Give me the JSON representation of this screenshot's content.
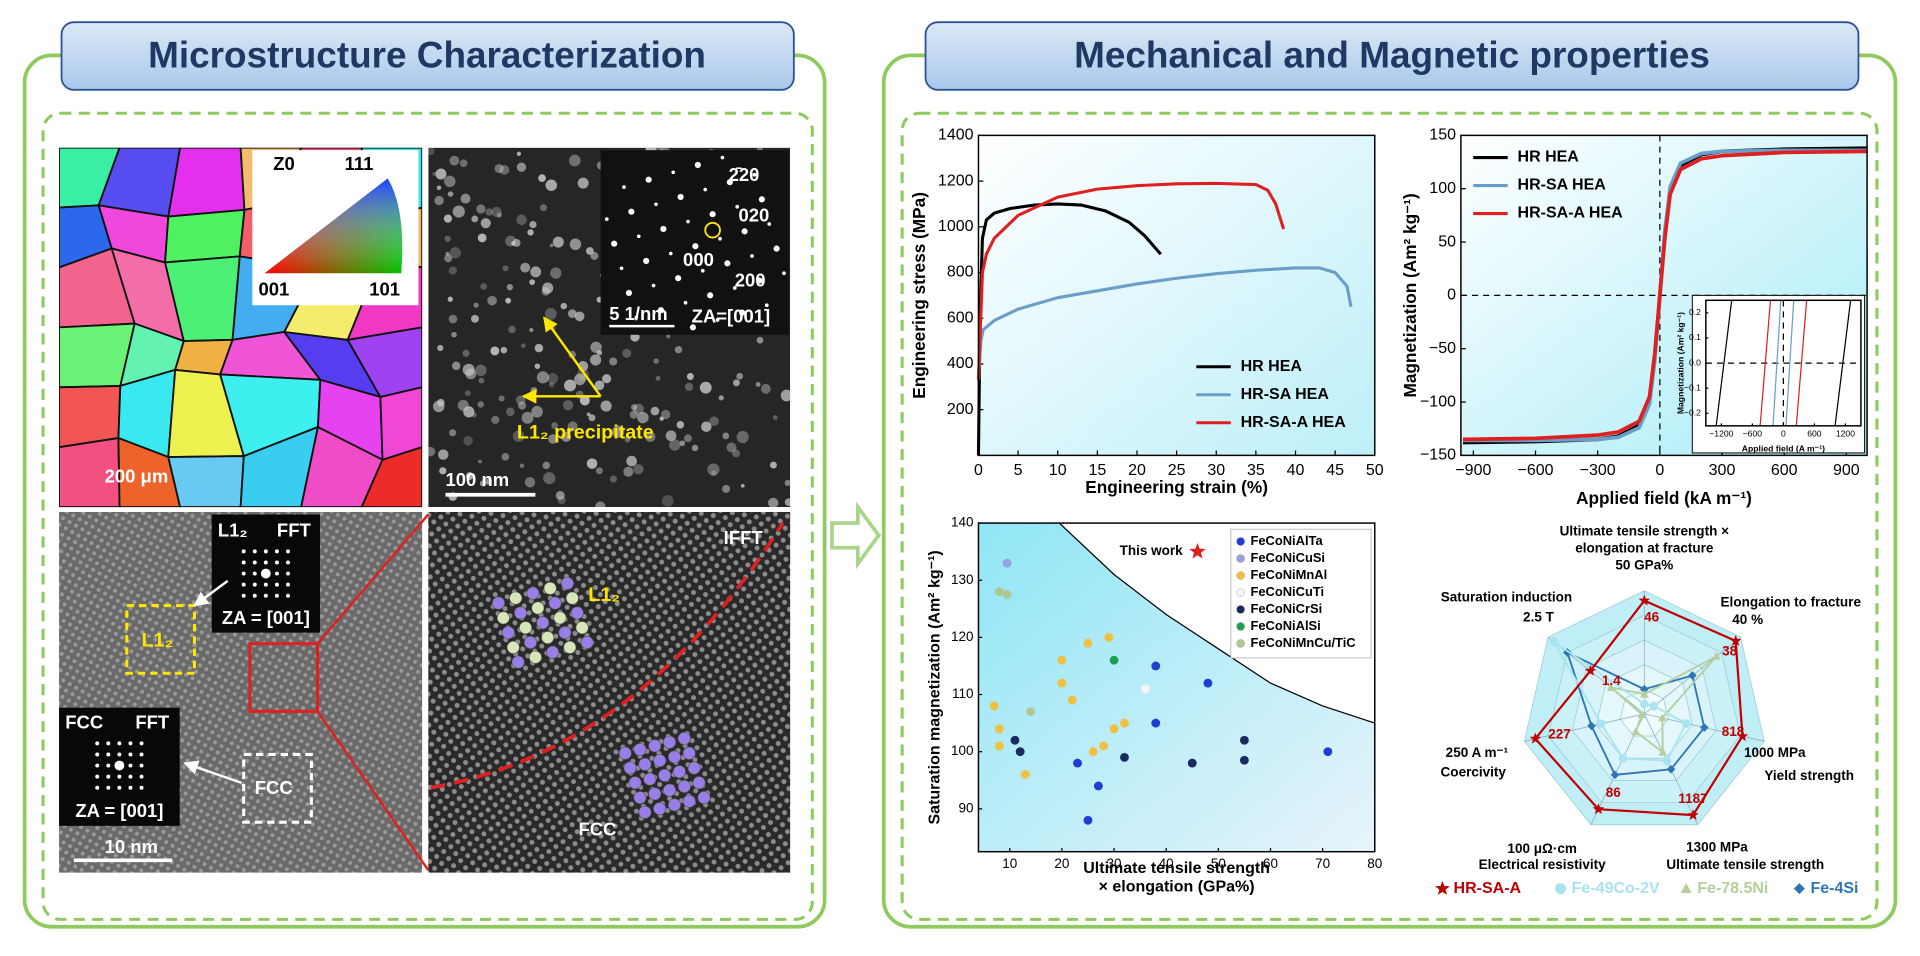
{
  "left_panel": {
    "title": "Microstructure Characterization",
    "ebsd": {
      "key": [
        "Z0",
        "111",
        "001",
        "101"
      ],
      "scale_bar": "200 μm"
    },
    "tem": {
      "diffraction": [
        "2̄20",
        "020",
        "000",
        "200"
      ],
      "scale_inset": "5 1/nm",
      "zone_axis": "ZA=[001]",
      "annotation": "L1₂ precipitate",
      "scale_bar": "100 nm"
    },
    "hrtem": {
      "box_l12": "L1₂",
      "fft_l12": {
        "phase": "L1₂",
        "label": "FFT",
        "zone_axis": "ZA = [001]"
      },
      "fft_fcc": {
        "phase": "FCC",
        "label": "FFT",
        "zone_axis": "ZA = [001]"
      },
      "box_fcc": "FCC",
      "scale_bar": "10 nm"
    },
    "ifft": {
      "label": "IFFT",
      "l12": "L1₂",
      "fcc": "FCC"
    }
  },
  "right_panel": {
    "title": "Mechanical and Magnetic properties"
  },
  "chart_data": [
    {
      "type": "line",
      "xlabel": "Engineering strain (%)",
      "ylabel": "Engineering stress (MPa)",
      "xlim": [
        0,
        50
      ],
      "xticks": [
        0,
        5,
        10,
        15,
        20,
        25,
        30,
        35,
        40,
        45,
        50
      ],
      "ylim": [
        0,
        1400
      ],
      "yticks": [
        200,
        400,
        600,
        800,
        1000,
        1200,
        1400
      ],
      "legend": "lower right",
      "series": [
        {
          "name": "HR HEA",
          "color": "#000000",
          "x": [
            0,
            0.2,
            0.5,
            1,
            2,
            4,
            7,
            10,
            13,
            16,
            19,
            21,
            23
          ],
          "values": [
            0,
            600,
            950,
            1030,
            1060,
            1080,
            1095,
            1100,
            1095,
            1070,
            1020,
            960,
            880
          ]
        },
        {
          "name": "HR-SA HEA",
          "color": "#6a9ec8",
          "x": [
            0,
            0.3,
            0.6,
            2,
            5,
            10,
            15,
            20,
            25,
            30,
            35,
            40,
            43,
            45,
            46.5,
            47
          ],
          "values": [
            330,
            500,
            550,
            590,
            640,
            690,
            720,
            750,
            775,
            795,
            810,
            820,
            820,
            800,
            740,
            650
          ]
        },
        {
          "name": "HR-SA-A HEA",
          "color": "#e02020",
          "x": [
            0,
            0.5,
            1,
            2,
            5,
            10,
            15,
            20,
            25,
            30,
            35,
            36.5,
            37.5,
            38.5
          ],
          "values": [
            330,
            800,
            880,
            950,
            1050,
            1130,
            1165,
            1180,
            1188,
            1190,
            1185,
            1160,
            1100,
            990
          ]
        }
      ]
    },
    {
      "type": "line",
      "xlabel": "Applied field (kA m⁻¹)",
      "ylabel": "Magnetization (Am² kg⁻¹)",
      "xlim": [
        -960,
        1000
      ],
      "xticks": [
        {
          "value": -900,
          "label": "−900"
        },
        {
          "value": -600,
          "label": "−600"
        },
        {
          "value": -300,
          "label": "−300"
        },
        0,
        300,
        600,
        900
      ],
      "ylim": [
        -150,
        150
      ],
      "yticks": [
        {
          "value": -150,
          "label": "−150"
        },
        {
          "value": -100,
          "label": "−100"
        },
        {
          "value": -50,
          "label": "−50"
        },
        0,
        50,
        100,
        150
      ],
      "zero_lines": true,
      "legend": "upper left",
      "series": [
        {
          "name": "HR HEA",
          "color": "#000000",
          "x": [
            -950,
            -600,
            -300,
            -200,
            -100,
            -50,
            -25,
            0,
            25,
            50,
            100,
            200,
            300,
            600,
            1000
          ],
          "values": [
            -138,
            -137,
            -135,
            -132,
            -122,
            -100,
            -60,
            0,
            60,
            100,
            122,
            132,
            135,
            137,
            138
          ]
        },
        {
          "name": "HR-SA HEA",
          "color": "#6a9ec8",
          "x": [
            -950,
            -600,
            -300,
            -200,
            -100,
            -50,
            -25,
            0,
            25,
            50,
            100,
            200,
            300,
            600,
            1000
          ],
          "values": [
            -136,
            -136,
            -135,
            -133,
            -124,
            -102,
            -62,
            0,
            62,
            102,
            124,
            133,
            135,
            136,
            136
          ]
        },
        {
          "name": "HR-SA-A HEA",
          "color": "#e02020",
          "x": [
            -950,
            -600,
            -300,
            -200,
            -100,
            -50,
            -25,
            0,
            25,
            50,
            100,
            200,
            300,
            600,
            1000
          ],
          "values": [
            -135,
            -134,
            -131,
            -128,
            -118,
            -95,
            -55,
            0,
            55,
            95,
            118,
            128,
            131,
            134,
            135
          ]
        }
      ]
    },
    {
      "type": "line",
      "xlabel": "Applied field (A m⁻¹)",
      "ylabel": "Magnetization (Am² kg⁻¹)",
      "xlim": [
        -1500,
        1500
      ],
      "xticks": [
        {
          "value": -1200,
          "label": "−1200"
        },
        {
          "value": -600,
          "label": "−600"
        },
        0,
        600,
        1200
      ],
      "ylim": [
        -0.25,
        0.25
      ],
      "yticks": [
        {
          "value": -0.2,
          "label": "−0.2"
        },
        {
          "value": -0.1,
          "label": "−0.1"
        },
        {
          "value": 0,
          "label": "0.0"
        },
        0.1,
        0.2
      ],
      "zero_lines": true,
      "series": [
        {
          "color": "#000000",
          "x": [
            -1300,
            -1000,
            null,
            1000,
            1300
          ],
          "values": [
            -0.25,
            0.25,
            null,
            -0.25,
            0.25
          ]
        },
        {
          "color": "#e02020",
          "x": [
            -450,
            -250,
            null,
            250,
            450
          ],
          "values": [
            -0.25,
            0.25,
            null,
            -0.25,
            0.25
          ]
        },
        {
          "color": "#6a9ec8",
          "x": [
            -200,
            -50,
            null,
            50,
            200
          ],
          "values": [
            -0.25,
            0.25,
            null,
            -0.25,
            0.25
          ]
        }
      ]
    },
    {
      "type": "scatter",
      "xlabel": [
        "Ultimate tensile strength",
        "× elongation (GPa%)"
      ],
      "ylabel": "Saturation magnetization (Am² kg⁻¹)",
      "xlim": [
        4,
        80
      ],
      "xticks": [
        10,
        20,
        30,
        40,
        50,
        60,
        70,
        80
      ],
      "ylim": [
        82.5,
        140
      ],
      "yticks": [
        90,
        100,
        110,
        120,
        130,
        140
      ],
      "legend": "upper right",
      "curve": {
        "x": [
          19.5,
          30,
          40,
          50,
          60,
          70,
          80
        ],
        "y": [
          140,
          131,
          124,
          118,
          112,
          108,
          105
        ]
      },
      "this_work": {
        "label": "This work",
        "x": 46,
        "y": 135,
        "color": "#e02020"
      },
      "series": [
        {
          "name": "FeCoNiAlTa",
          "color": "#1f3fd0",
          "x": [
            38,
            48,
            38,
            71,
            23,
            27,
            25
          ],
          "values": [
            115,
            112,
            105,
            100,
            98,
            94,
            88
          ]
        },
        {
          "name": "FeCoNiCuSi",
          "color": "#94a3e0",
          "x": [
            9.5
          ],
          "values": [
            133
          ]
        },
        {
          "name": "FeCoNiMnAl",
          "color": "#f0c040",
          "x": [
            7,
            8,
            8,
            20,
            20,
            22,
            25,
            29,
            30,
            32,
            28,
            26,
            13
          ],
          "values": [
            108,
            104,
            101,
            116,
            112,
            109,
            119,
            120,
            104,
            105,
            101,
            100,
            96
          ]
        },
        {
          "name": "FeCoNiCuTi",
          "color": "#f4f4f4",
          "x": [
            36
          ],
          "values": [
            111
          ]
        },
        {
          "name": "FeCoNiCrSi",
          "color": "#1a2a60",
          "x": [
            11,
            12,
            32,
            45,
            55,
            55
          ],
          "values": [
            102,
            100,
            99,
            98,
            98.5,
            102
          ]
        },
        {
          "name": "FeCoNiAlSi",
          "color": "#20a050",
          "x": [
            30
          ],
          "values": [
            116
          ]
        },
        {
          "name": "FeCoNiMnCu/TiC",
          "color": "#b0c890",
          "x": [
            8,
            9.5,
            14
          ],
          "values": [
            128,
            127.5,
            107
          ]
        }
      ]
    },
    {
      "type": "radar",
      "axes": [
        {
          "name": [
            "Ultimate tensile strength ×",
            "elongation at fracture"
          ],
          "max": 50,
          "max_label": "50 GPa%"
        },
        {
          "name": [
            "Elongation to fracture"
          ],
          "max": 40,
          "max_label": "40 %"
        },
        {
          "name": [
            "Yield strength"
          ],
          "max": 1000,
          "max_label": "1000 MPa"
        },
        {
          "name": [
            "Ultimate tensile strength"
          ],
          "max": 1300,
          "max_label": "1300 MPa"
        },
        {
          "name": [
            "Electrical resistivity"
          ],
          "max": 100,
          "max_label": "100 μΩ·cm"
        },
        {
          "name": [
            "Coercivity"
          ],
          "max": 250,
          "max_label": "250  A m⁻¹"
        },
        {
          "name": [
            "Saturation induction"
          ],
          "max": 2.5,
          "max_label": "2.5 T"
        }
      ],
      "series": [
        {
          "name": "HR-SA-A",
          "color": "#c00000",
          "marker": "star",
          "data_labels": true,
          "values": [
            46,
            38,
            818,
            1187,
            86,
            227,
            1.4
          ]
        },
        {
          "name": "Fe-49Co-2V",
          "color": "#a8e4f0",
          "marker": "circle",
          "values": [
            4,
            4,
            350,
            550,
            40,
            90,
            2.35
          ]
        },
        {
          "name": "Fe-78.5Ni",
          "color": "#b5cf9b",
          "marker": "triangle",
          "values": [
            8,
            30,
            150,
            450,
            16,
            5,
            0.86
          ]
        },
        {
          "name": "Fe-4Si",
          "color": "#2e75b6",
          "marker": "diamond",
          "values": [
            10,
            20,
            500,
            650,
            55,
            110,
            2.0
          ]
        }
      ]
    }
  ]
}
